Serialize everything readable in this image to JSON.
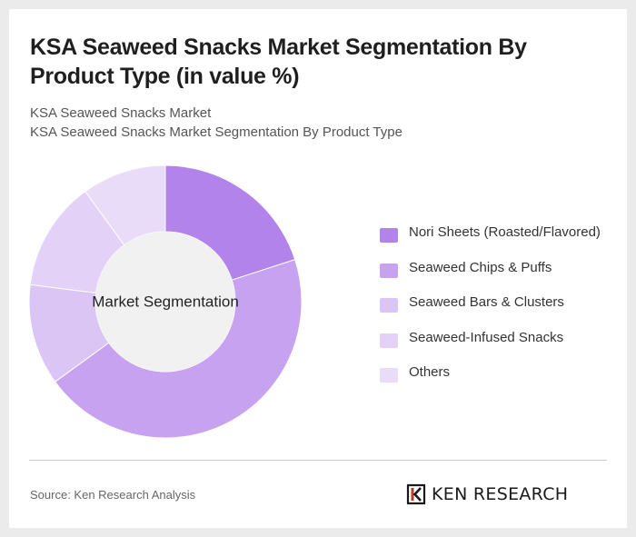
{
  "header": {
    "title": "KSA Seaweed Snacks Market Segmentation By Product Type (in value %)",
    "subtitle_line1": "KSA Seaweed Snacks Market",
    "subtitle_line2": "KSA Seaweed Snacks Market Segmentation By Product Type"
  },
  "chart_data": {
    "type": "pie",
    "variant": "donut",
    "center_label": "Market Segmentation",
    "categories": [
      "Nori Sheets (Roasted/Flavored)",
      "Seaweed Chips & Puffs",
      "Seaweed Bars & Clusters",
      "Seaweed-Infused Snacks",
      "Others"
    ],
    "values": [
      20,
      45,
      12,
      13,
      10
    ],
    "colors": [
      "#b283ea",
      "#c7a2f0",
      "#dac5f5",
      "#e3d1f7",
      "#e8dcf9"
    ],
    "legend_position": "right"
  },
  "footer": {
    "source": "Source: Ken Research Analysis",
    "logo_text": "KEN RESEARCH"
  }
}
